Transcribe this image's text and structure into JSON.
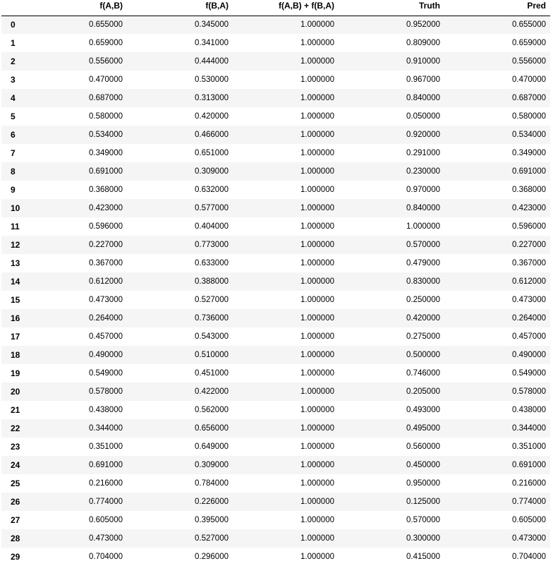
{
  "table": {
    "columns": [
      "",
      "f(A,B)",
      "f(B,A)",
      "f(A,B) + f(B,A)",
      "Truth",
      "Pred"
    ],
    "rows": [
      {
        "index": "0",
        "fab": "0.655000",
        "fba": "0.345000",
        "sum": "1.000000",
        "truth": "0.952000",
        "pred": "0.655000"
      },
      {
        "index": "1",
        "fab": "0.659000",
        "fba": "0.341000",
        "sum": "1.000000",
        "truth": "0.809000",
        "pred": "0.659000"
      },
      {
        "index": "2",
        "fab": "0.556000",
        "fba": "0.444000",
        "sum": "1.000000",
        "truth": "0.910000",
        "pred": "0.556000"
      },
      {
        "index": "3",
        "fab": "0.470000",
        "fba": "0.530000",
        "sum": "1.000000",
        "truth": "0.967000",
        "pred": "0.470000"
      },
      {
        "index": "4",
        "fab": "0.687000",
        "fba": "0.313000",
        "sum": "1.000000",
        "truth": "0.840000",
        "pred": "0.687000"
      },
      {
        "index": "5",
        "fab": "0.580000",
        "fba": "0.420000",
        "sum": "1.000000",
        "truth": "0.050000",
        "pred": "0.580000"
      },
      {
        "index": "6",
        "fab": "0.534000",
        "fba": "0.466000",
        "sum": "1.000000",
        "truth": "0.920000",
        "pred": "0.534000"
      },
      {
        "index": "7",
        "fab": "0.349000",
        "fba": "0.651000",
        "sum": "1.000000",
        "truth": "0.291000",
        "pred": "0.349000"
      },
      {
        "index": "8",
        "fab": "0.691000",
        "fba": "0.309000",
        "sum": "1.000000",
        "truth": "0.230000",
        "pred": "0.691000"
      },
      {
        "index": "9",
        "fab": "0.368000",
        "fba": "0.632000",
        "sum": "1.000000",
        "truth": "0.970000",
        "pred": "0.368000"
      },
      {
        "index": "10",
        "fab": "0.423000",
        "fba": "0.577000",
        "sum": "1.000000",
        "truth": "0.840000",
        "pred": "0.423000"
      },
      {
        "index": "11",
        "fab": "0.596000",
        "fba": "0.404000",
        "sum": "1.000000",
        "truth": "1.000000",
        "pred": "0.596000"
      },
      {
        "index": "12",
        "fab": "0.227000",
        "fba": "0.773000",
        "sum": "1.000000",
        "truth": "0.570000",
        "pred": "0.227000"
      },
      {
        "index": "13",
        "fab": "0.367000",
        "fba": "0.633000",
        "sum": "1.000000",
        "truth": "0.479000",
        "pred": "0.367000"
      },
      {
        "index": "14",
        "fab": "0.612000",
        "fba": "0.388000",
        "sum": "1.000000",
        "truth": "0.830000",
        "pred": "0.612000"
      },
      {
        "index": "15",
        "fab": "0.473000",
        "fba": "0.527000",
        "sum": "1.000000",
        "truth": "0.250000",
        "pred": "0.473000"
      },
      {
        "index": "16",
        "fab": "0.264000",
        "fba": "0.736000",
        "sum": "1.000000",
        "truth": "0.420000",
        "pred": "0.264000"
      },
      {
        "index": "17",
        "fab": "0.457000",
        "fba": "0.543000",
        "sum": "1.000000",
        "truth": "0.275000",
        "pred": "0.457000"
      },
      {
        "index": "18",
        "fab": "0.490000",
        "fba": "0.510000",
        "sum": "1.000000",
        "truth": "0.500000",
        "pred": "0.490000"
      },
      {
        "index": "19",
        "fab": "0.549000",
        "fba": "0.451000",
        "sum": "1.000000",
        "truth": "0.746000",
        "pred": "0.549000"
      },
      {
        "index": "20",
        "fab": "0.578000",
        "fba": "0.422000",
        "sum": "1.000000",
        "truth": "0.205000",
        "pred": "0.578000"
      },
      {
        "index": "21",
        "fab": "0.438000",
        "fba": "0.562000",
        "sum": "1.000000",
        "truth": "0.493000",
        "pred": "0.438000"
      },
      {
        "index": "22",
        "fab": "0.344000",
        "fba": "0.656000",
        "sum": "1.000000",
        "truth": "0.495000",
        "pred": "0.344000"
      },
      {
        "index": "23",
        "fab": "0.351000",
        "fba": "0.649000",
        "sum": "1.000000",
        "truth": "0.560000",
        "pred": "0.351000"
      },
      {
        "index": "24",
        "fab": "0.691000",
        "fba": "0.309000",
        "sum": "1.000000",
        "truth": "0.450000",
        "pred": "0.691000"
      },
      {
        "index": "25",
        "fab": "0.216000",
        "fba": "0.784000",
        "sum": "1.000000",
        "truth": "0.950000",
        "pred": "0.216000"
      },
      {
        "index": "26",
        "fab": "0.774000",
        "fba": "0.226000",
        "sum": "1.000000",
        "truth": "0.125000",
        "pred": "0.774000"
      },
      {
        "index": "27",
        "fab": "0.605000",
        "fba": "0.395000",
        "sum": "1.000000",
        "truth": "0.570000",
        "pred": "0.605000"
      },
      {
        "index": "28",
        "fab": "0.473000",
        "fba": "0.527000",
        "sum": "1.000000",
        "truth": "0.300000",
        "pred": "0.473000"
      },
      {
        "index": "29",
        "fab": "0.704000",
        "fba": "0.296000",
        "sum": "1.000000",
        "truth": "0.415000",
        "pred": "0.704000"
      }
    ]
  },
  "colors": {
    "row_stripe": "#f5f5f5",
    "background": "#ffffff",
    "text": "#000000",
    "header_rule": "#000000"
  }
}
